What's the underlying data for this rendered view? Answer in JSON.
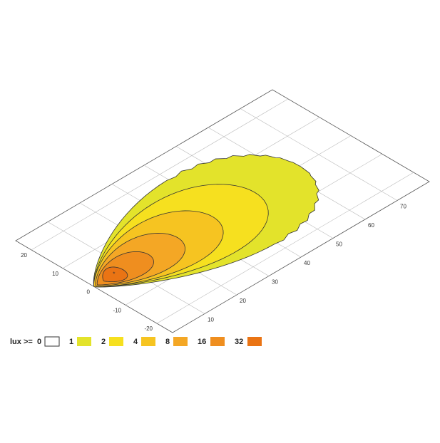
{
  "distance_ticks": [
    10,
    20,
    30,
    40,
    50,
    60,
    70
  ],
  "lateral_ticks": [
    20,
    10,
    0,
    -10,
    -20
  ],
  "legend": {
    "label": "lux >=",
    "levels": [
      0,
      1,
      2,
      4,
      8,
      16,
      32
    ],
    "colors": [
      "#ffffff",
      "#e3e32b",
      "#f6e01f",
      "#f6c421",
      "#f4a725",
      "#ef8e1f",
      "#ea7414"
    ]
  }
}
